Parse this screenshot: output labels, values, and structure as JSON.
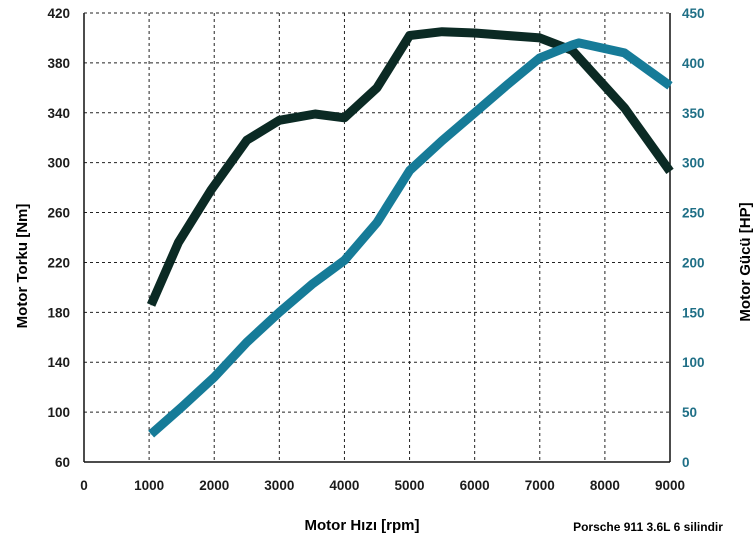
{
  "chart_data": {
    "type": "line",
    "x": [
      1000,
      1500,
      2000,
      2500,
      3000,
      3500,
      4000,
      4500,
      5000,
      5500,
      6000,
      6500,
      7000,
      7500,
      8000,
      8500,
      9000
    ],
    "xlabel": "Motor Hızı [rpm]",
    "xlim": [
      0,
      9000
    ],
    "xticks": [
      "0",
      "1000",
      "2000",
      "3000",
      "4000",
      "5000",
      "6000",
      "7000",
      "8000",
      "9000"
    ],
    "ylabel_left": "Motor Torku [Nm]",
    "ylim_left": [
      60,
      420
    ],
    "yticks_left": [
      "60",
      "100",
      "140",
      "180",
      "220",
      "260",
      "300",
      "340",
      "380",
      "420"
    ],
    "ylabel_right": "Motor Gücü [HP]",
    "ylim_right": [
      0,
      450
    ],
    "yticks_right": [
      "0",
      "50",
      "100",
      "150",
      "200",
      "250",
      "300",
      "350",
      "400",
      "450"
    ],
    "grid": true,
    "note": "Porsche 911 3.6L 6 silindir",
    "series": [
      {
        "axis": "left",
        "color": "#0b2a24",
        "x": [
          1030,
          1450,
          1950,
          2500,
          3000,
          3550,
          4000,
          4500,
          5000,
          5500,
          6000,
          6500,
          7000,
          7500,
          8300,
          9000
        ],
        "values": [
          186,
          236,
          278,
          318,
          334,
          339,
          336,
          360,
          402,
          405,
          404,
          402,
          400,
          390,
          344,
          293
        ]
      },
      {
        "axis": "right",
        "color": "#167b98",
        "x": [
          1030,
          1500,
          2000,
          2500,
          3000,
          3500,
          4000,
          4500,
          5000,
          5500,
          6000,
          6500,
          7000,
          7500,
          7600,
          8300,
          9000
        ],
        "values": [
          28,
          55,
          85,
          120,
          150,
          178,
          202,
          240,
          292,
          322,
          350,
          378,
          405,
          418,
          420,
          410,
          377
        ]
      }
    ]
  }
}
